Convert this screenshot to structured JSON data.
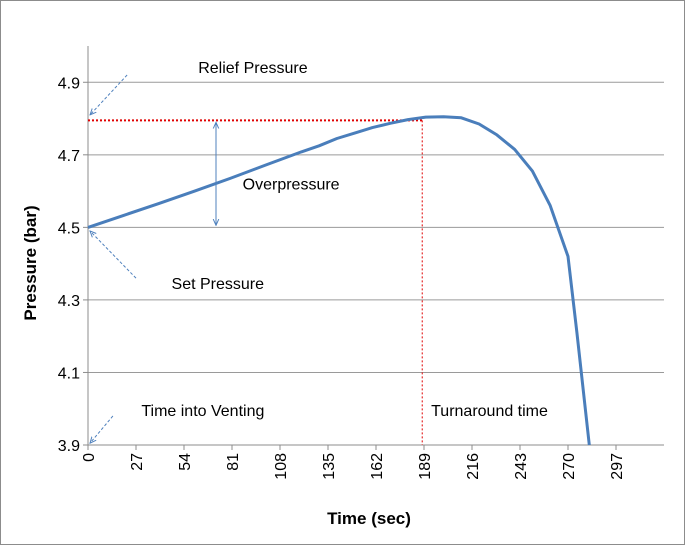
{
  "chart_data": {
    "type": "line",
    "title": "",
    "xlabel": "Time (sec)",
    "ylabel": "Pressure (bar)",
    "xlim": [
      0,
      324
    ],
    "ylim": [
      3.9,
      5.0
    ],
    "grid": "horizontal",
    "x_ticks": [
      "0",
      "27",
      "54",
      "81",
      "108",
      "135",
      "162",
      "189",
      "216",
      "243",
      "270",
      "297"
    ],
    "y_ticks": [
      "3.9",
      "4.1",
      "4.3",
      "4.5",
      "4.7",
      "4.9"
    ],
    "series": [
      {
        "color": "#4a7ebb",
        "x": [
          0,
          20,
          40,
          60,
          80,
          100,
          120,
          130,
          140,
          150,
          160,
          170,
          180,
          190,
          200,
          210,
          220,
          230,
          240,
          250,
          260,
          270,
          275,
          282
        ],
        "y": [
          4.5,
          4.533,
          4.566,
          4.6,
          4.635,
          4.672,
          4.708,
          4.725,
          4.745,
          4.76,
          4.775,
          4.787,
          4.797,
          4.804,
          4.805,
          4.802,
          4.785,
          4.755,
          4.715,
          4.655,
          4.56,
          4.42,
          4.21,
          3.9
        ]
      }
    ],
    "annotations": [
      {
        "text": "Relief Pressure",
        "x": 62,
        "y": 4.925
      },
      {
        "text": "Overpressure",
        "x": 87,
        "y": 4.605
      },
      {
        "text": "Set Pressure",
        "x": 47,
        "y": 4.33
      },
      {
        "text": "Time into Venting",
        "x": 30,
        "y": 3.98
      },
      {
        "text": "Turnaround time",
        "x": 193,
        "y": 3.98
      }
    ],
    "reference_lines": {
      "relief_pressure": 4.795,
      "turnaround_time": 188
    }
  },
  "colors": {
    "series": "#4a7ebb",
    "reference": "#e00000",
    "arrow": "#4f81bd",
    "grid": "#9a9a9a"
  }
}
